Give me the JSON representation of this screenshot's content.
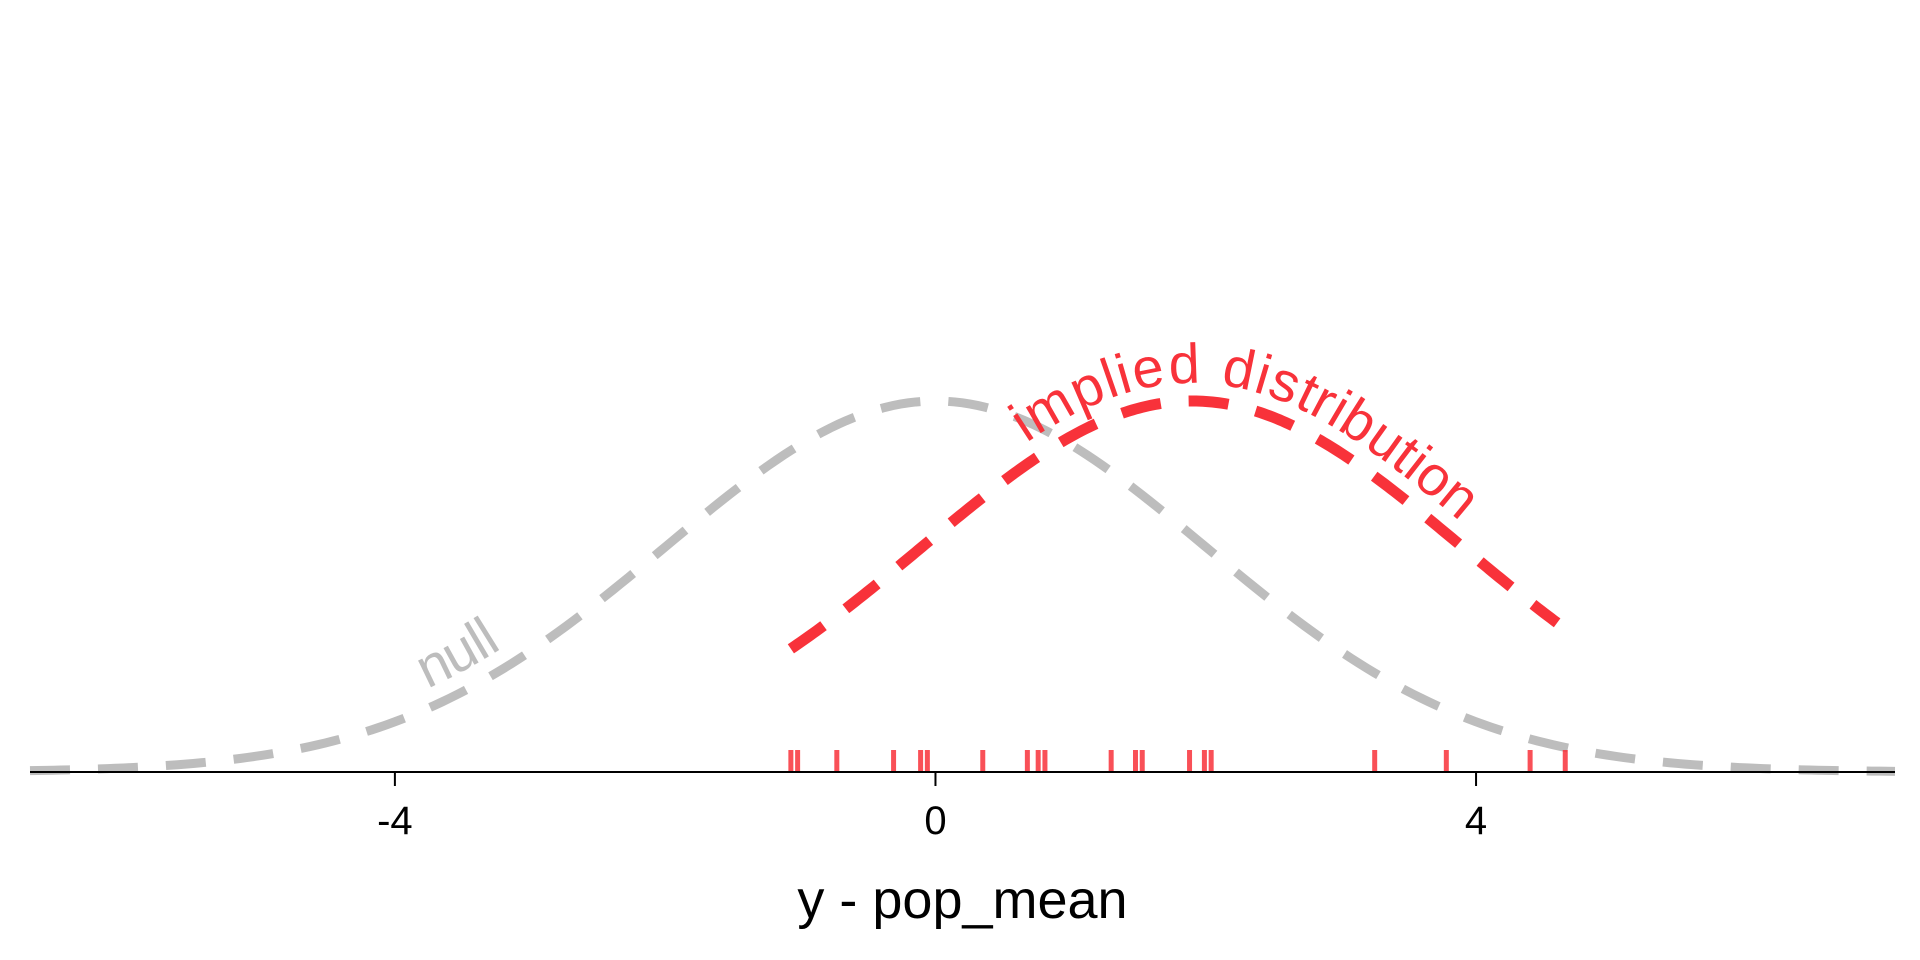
{
  "chart_data": {
    "type": "line",
    "title": "",
    "xlabel": "y - pop_mean",
    "ylabel": "",
    "xlim": [
      -6.7,
      7.1
    ],
    "ylim": [
      0,
      0.4
    ],
    "grid": false,
    "legend": "none",
    "x_ticks": [
      {
        "value": -4,
        "label": "-4"
      },
      {
        "value": 0,
        "label": "0"
      },
      {
        "value": 4,
        "label": "4"
      }
    ],
    "series": [
      {
        "name": "null",
        "kind": "density",
        "distribution": "normal",
        "mean": 0,
        "sd": 2,
        "x_range": [
          -6.7,
          7.1
        ],
        "color": "#bdbdbd",
        "style": "dashed"
      },
      {
        "name": "implied distribution",
        "kind": "density",
        "distribution": "normal",
        "mean": 1.9,
        "sd": 2,
        "x_range": [
          -1.07,
          4.6
        ],
        "color": "#f8323a",
        "style": "dashed"
      }
    ],
    "rug": {
      "color": "#f8323a",
      "values": [
        -1.07,
        -1.02,
        -0.73,
        -0.31,
        -0.11,
        -0.06,
        0.35,
        0.68,
        0.76,
        0.81,
        1.3,
        1.48,
        1.53,
        1.88,
        1.99,
        2.04,
        3.25,
        3.78,
        4.4,
        4.66
      ]
    }
  }
}
